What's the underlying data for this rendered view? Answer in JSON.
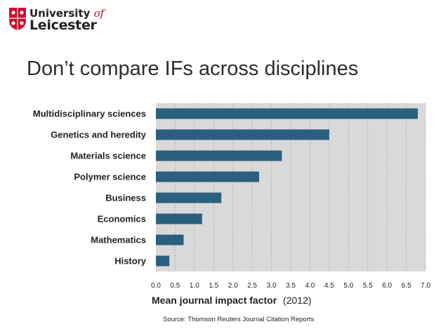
{
  "logo": {
    "line1": "University",
    "line1_of": "of",
    "line2": "Leicester",
    "brand_color": "#c8102e"
  },
  "slide": {
    "title": "Don’t compare IFs across disciplines",
    "source": "Source: Thomson Reuters Journal Citation Reports"
  },
  "chart_data": {
    "type": "bar",
    "orientation": "horizontal",
    "categories": [
      "Multidisciplinary sciences",
      "Genetics and heredity",
      "Materials science",
      "Polymer science",
      "Business",
      "Economics",
      "Mathematics",
      "History"
    ],
    "values": [
      6.8,
      4.5,
      3.27,
      2.68,
      1.7,
      1.2,
      0.72,
      0.35
    ],
    "xlabel": "Mean journal impact factor",
    "xlabel_suffix": "(2012)",
    "xlim": [
      0,
      7
    ],
    "xticks": [
      "0.0",
      "0.5",
      "1.0",
      "1.5",
      "2.0",
      "2.5",
      "3.0",
      "3.5",
      "4.0",
      "4.5",
      "5.0",
      "5.5",
      "6.0",
      "6.5",
      "7.0"
    ],
    "bar_color": "#2b5f7e",
    "plot_background": "#d9d9d9",
    "grid": true
  }
}
